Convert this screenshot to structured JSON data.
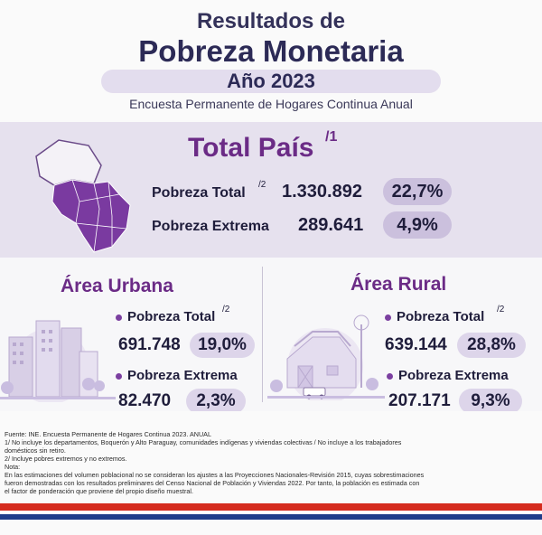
{
  "header": {
    "title_top": "Resultados de",
    "title_main": "Pobreza Monetaria",
    "year": "Año 2023",
    "subtitle": "Encuesta Permanente de Hogares Continua Anual"
  },
  "total_pais": {
    "title": "Total País",
    "sup": "/1",
    "rows": [
      {
        "label": "Pobreza Total",
        "sup": "/2",
        "value": "1.330.892",
        "pct": "22,7%"
      },
      {
        "label": "Pobreza Extrema",
        "sup": "",
        "value": "289.641",
        "pct": "4,9%"
      }
    ]
  },
  "urbana": {
    "title": "Área Urbana",
    "total_label": "Pobreza Total",
    "total_sup": "/2",
    "total_value": "691.748",
    "total_pct": "19,0%",
    "extrema_label": "Pobreza Extrema",
    "extrema_value": "82.470",
    "extrema_pct": "2,3%"
  },
  "rural": {
    "title": "Área Rural",
    "total_label": "Pobreza Total",
    "total_sup": "/2",
    "total_value": "639.144",
    "total_pct": "28,8%",
    "extrema_label": "Pobreza Extrema",
    "extrema_value": "207.171",
    "extrema_pct": "9,3%"
  },
  "footer": {
    "source": "Fuente: INE. Encuesta Permanente de Hogares Continua 2023. ANUAL",
    "note1": "1/ No incluye los departamentos, Boquerón y Alto Paraguay, comunidades indígenas y viviendas colectivas / No incluye a los trabajadores",
    "note1b": "domésticos sin retiro.",
    "note2": "2/ Incluye pobres extremos y no extremos.",
    "nota_label": "Nota:",
    "nota_text1": "En las estimaciones del volumen poblacional no se consideran los ajustes a las Proyecciones Nacionales-Revisión 2015, cuyas sobrestimaciones",
    "nota_text2": "fueron demostradas con los resultados preliminares del Censo Nacional de Población y Viviendas 2022. Por tanto, la población es estimada con",
    "nota_text3": "el factor de ponderación que proviene del propio diseño muestral."
  },
  "colors": {
    "accent": "#6b2b86",
    "pill": "#cbc0dd",
    "band": "#e6e1ee",
    "flag_red": "#d52b1e",
    "flag_blue": "#1f3d8a"
  }
}
